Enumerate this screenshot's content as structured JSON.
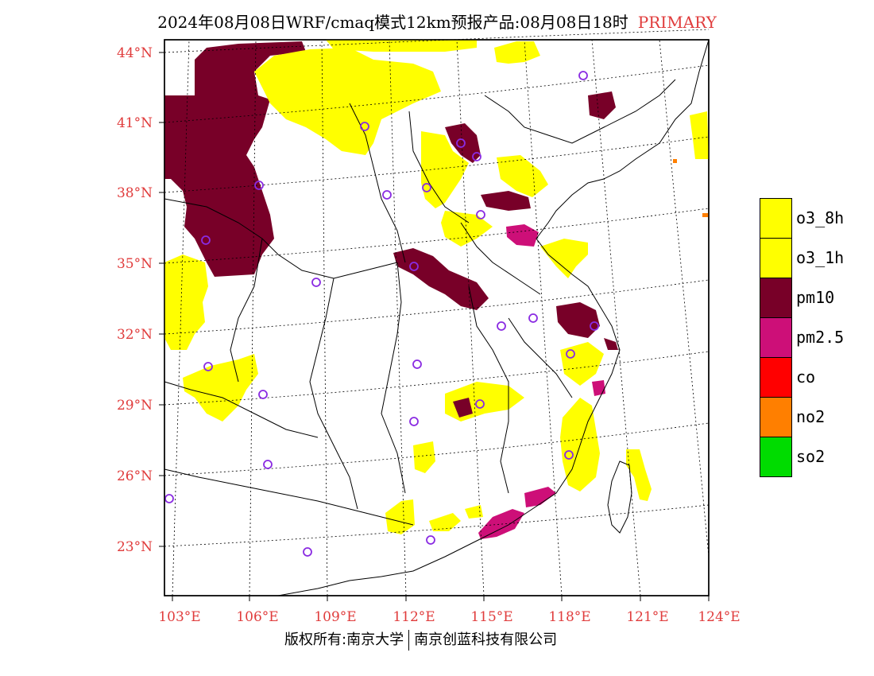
{
  "title": {
    "main": "2024年08月08日WRF/cmaq模式12km预报产品:08月08日18时",
    "tag": "PRIMARY"
  },
  "colors": {
    "o3_8h": "#ffff00",
    "o3_1h": "#ffff00",
    "pm10": "#780028",
    "pm2_5": "#cd0f78",
    "co": "#ff0000",
    "no2": "#ff7f00",
    "so2": "#00dc00",
    "axis_label": "#e03c3c",
    "station_marker": "#8a2be2"
  },
  "legend": [
    {
      "label": "o3_8h",
      "color": "#ffff00"
    },
    {
      "label": "o3_1h",
      "color": "#ffff00"
    },
    {
      "label": "pm10",
      "color": "#780028"
    },
    {
      "label": "pm2.5",
      "color": "#cd0f78"
    },
    {
      "label": "co",
      "color": "#ff0000"
    },
    {
      "label": "no2",
      "color": "#ff7f00"
    },
    {
      "label": "so2",
      "color": "#00dc00"
    }
  ],
  "axes": {
    "lat_labels": [
      "44°N",
      "41°N",
      "38°N",
      "35°N",
      "32°N",
      "29°N",
      "26°N",
      "23°N"
    ],
    "lon_labels": [
      "103°E",
      "106°E",
      "109°E",
      "112°E",
      "115°E",
      "118°E",
      "121°E",
      "124°E"
    ]
  },
  "footer": {
    "left": "版权所有:南京大学",
    "right": "南京创蓝科技有限公司"
  }
}
